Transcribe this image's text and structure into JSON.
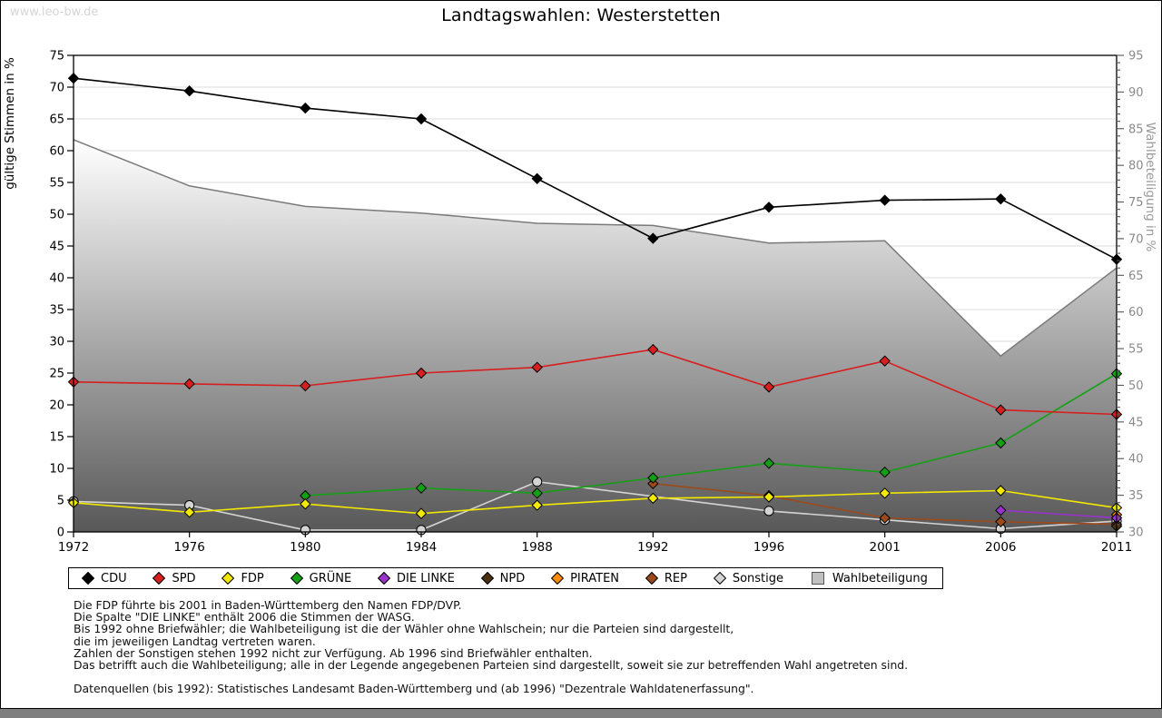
{
  "watermark": "www.leo-bw.de",
  "title": "Landtagswahlen: Westerstetten",
  "chart_data": {
    "type": "line",
    "title": "Landtagswahlen: Westerstetten",
    "xlabel": "",
    "ylabel_left": "gültige Stimmen in %",
    "ylabel_right": "Wahlbeteiligung in %",
    "ylim_left": [
      0,
      75
    ],
    "ylim_right": [
      30,
      95
    ],
    "ytick_step": 5,
    "grid": true,
    "x": [
      1972,
      1976,
      1980,
      1984,
      1988,
      1992,
      1996,
      2001,
      2006,
      2011
    ],
    "yticks_left": [
      0,
      5,
      10,
      15,
      20,
      25,
      30,
      35,
      40,
      45,
      50,
      55,
      60,
      65,
      70,
      75
    ],
    "yticks_right": [
      30,
      35,
      40,
      45,
      50,
      55,
      60,
      65,
      70,
      75,
      80,
      85,
      90,
      95
    ],
    "series": [
      {
        "name": "CDU",
        "color": "#000000",
        "marker": "diamond",
        "values": [
          71.4,
          69.4,
          66.7,
          65.0,
          55.6,
          46.2,
          51.1,
          52.2,
          52.4,
          42.9
        ]
      },
      {
        "name": "SPD",
        "color": "#d81e1e",
        "marker": "diamond",
        "values": [
          23.6,
          23.3,
          23.0,
          25.0,
          25.9,
          28.7,
          22.8,
          26.9,
          19.2,
          18.5
        ]
      },
      {
        "name": "FDP",
        "color": "#f2e800",
        "marker": "diamond",
        "values": [
          4.6,
          3.1,
          4.4,
          2.9,
          4.2,
          5.3,
          5.5,
          6.1,
          6.5,
          3.8
        ]
      },
      {
        "name": "GRÜNE",
        "color": "#14a014",
        "marker": "diamond",
        "values": [
          null,
          null,
          5.7,
          6.9,
          6.1,
          8.5,
          10.8,
          9.4,
          14.0,
          24.9
        ]
      },
      {
        "name": "DIE LINKE",
        "color": "#9933cc",
        "marker": "diamond",
        "values": [
          null,
          null,
          null,
          null,
          null,
          null,
          null,
          null,
          3.4,
          2.2
        ]
      },
      {
        "name": "NPD",
        "color": "#4a300f",
        "marker": "diamond",
        "values": [
          null,
          null,
          null,
          null,
          null,
          null,
          null,
          null,
          null,
          0.9
        ]
      },
      {
        "name": "PIRATEN",
        "color": "#ff8c00",
        "marker": "diamond",
        "values": [
          null,
          null,
          null,
          null,
          null,
          null,
          null,
          null,
          null,
          2.7
        ]
      },
      {
        "name": "REP",
        "color": "#9c4a1a",
        "marker": "diamond",
        "values": [
          null,
          null,
          null,
          null,
          null,
          7.6,
          5.7,
          2.2,
          1.6,
          1.2
        ]
      },
      {
        "name": "Sonstige",
        "color": "#d4d4d4",
        "marker": "circle",
        "values": [
          4.8,
          4.2,
          0.3,
          0.3,
          7.9,
          null,
          3.3,
          1.9,
          0.5,
          1.7
        ]
      }
    ],
    "turnout": {
      "name": "Wahlbeteiligung",
      "axis": "right",
      "line_color": "#7a7a7a",
      "fill_top": "#ffffff",
      "fill_bottom": "#585858",
      "legend_swatch": "#c0c0c0",
      "values": [
        83.5,
        77.2,
        74.4,
        73.5,
        72.1,
        71.8,
        69.4,
        69.7,
        54.0,
        66.0
      ]
    },
    "legend_position": "bottom"
  },
  "footnotes": {
    "lines": [
      "Die FDP führte bis 2001 in Baden-Württemberg den Namen FDP/DVP.",
      "Die Spalte \"DIE LINKE\" enthält 2006 die Stimmen der WASG.",
      "Bis 1992 ohne Briefwähler; die Wahlbeteiligung ist die der Wähler ohne Wahlschein; nur die Parteien sind dargestellt,",
      "die im jeweiligen Landtag vertreten waren.",
      "Zahlen der Sonstigen stehen 1992 nicht zur Verfügung. Ab 1996 sind Briefwähler enthalten.",
      "Das betrifft auch die Wahlbeteiligung; alle in der Legende angegebenen Parteien sind dargestellt, soweit sie zur betreffenden Wahl angetreten sind.",
      "",
      "Datenquellen (bis 1992): Statistisches Landesamt Baden-Württemberg und (ab 1996) \"Dezentrale Wahldatenerfassung\"."
    ]
  }
}
